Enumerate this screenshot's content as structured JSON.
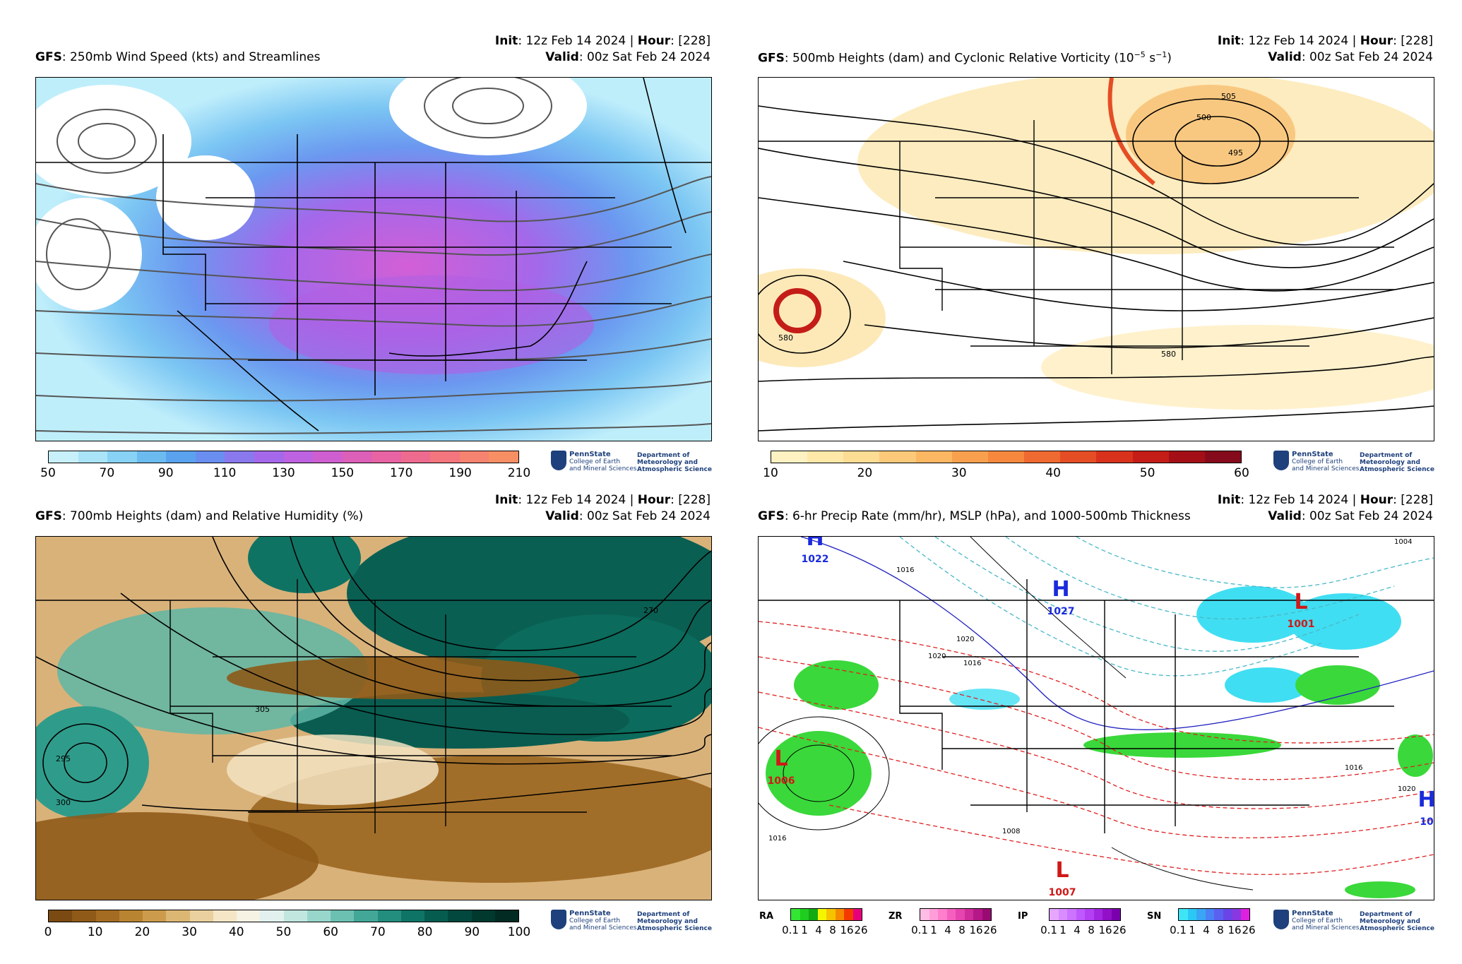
{
  "panels": [
    {
      "model": "GFS",
      "title": ": 250mb Wind Speed (kts) and Streamlines",
      "init_label": "Init",
      "init_value": ": 12z Feb 14 2024 | ",
      "hour_label": "Hour",
      "hour_value": ": [228]",
      "valid_label": "Valid",
      "valid_value": ": 00z Sat Feb 24 2024",
      "colorbar_ticks": [
        "50",
        "70",
        "90",
        "110",
        "130",
        "150",
        "170",
        "190",
        "210"
      ],
      "colorbar_colors": [
        "#c8f0fb",
        "#a9e4f8",
        "#87d2f5",
        "#6bbbf0",
        "#5aa2ee",
        "#6a8ef0",
        "#8a78ef",
        "#a668ea",
        "#bd62e0",
        "#cf5fd0",
        "#dc5fb8",
        "#e763a3",
        "#ee6b8f",
        "#f3757e",
        "#f68270",
        "#f88f64"
      ]
    },
    {
      "model": "GFS",
      "title": ": 500mb Heights (dam) and Cyclonic Relative Vorticity (10",
      "title_exp1": "−5",
      "title_mid": " s",
      "title_exp2": "−1",
      "title_end": ")",
      "init_label": "Init",
      "init_value": ": 12z Feb 14 2024 | ",
      "hour_label": "Hour",
      "hour_value": ": [228]",
      "valid_label": "Valid",
      "valid_value": ": 00z Sat Feb 24 2024",
      "colorbar_ticks": [
        "10",
        "20",
        "30",
        "40",
        "50",
        "60"
      ],
      "colorbar_colors": [
        "#fff2c2",
        "#ffe8a8",
        "#fddc94",
        "#fcc97a",
        "#fbb762",
        "#f9a04e",
        "#f6883e",
        "#ef6a30",
        "#e54d25",
        "#d8321c",
        "#c41d18",
        "#a40f17",
        "#850a1b"
      ],
      "contour_labels": [
        "505",
        "500",
        "495",
        "580",
        "580"
      ]
    },
    {
      "model": "GFS",
      "title": ": 700mb Heights (dam) and Relative Humidity (%)",
      "init_label": "Init",
      "init_value": ": 12z Feb 14 2024 | ",
      "hour_label": "Hour",
      "hour_value": ": [228]",
      "valid_label": "Valid",
      "valid_value": ": 00z Sat Feb 24 2024",
      "colorbar_ticks": [
        "0",
        "10",
        "20",
        "30",
        "40",
        "50",
        "60",
        "70",
        "80",
        "90",
        "100"
      ],
      "colorbar_colors": [
        "#7a4a12",
        "#8f5a18",
        "#a46c22",
        "#b98432",
        "#cc9c4c",
        "#dcb774",
        "#e9d09e",
        "#f4e6c6",
        "#f6f2e4",
        "#e2f1ee",
        "#c1e6df",
        "#98d6cb",
        "#6cc0b2",
        "#43a797",
        "#238d7e",
        "#0e7466",
        "#075c50",
        "#03483e",
        "#02392f",
        "#012b23"
      ],
      "contour_labels": [
        "270",
        "305",
        "300",
        "295"
      ]
    },
    {
      "model": "GFS",
      "title": ": 6-hr Precip Rate (mm/hr), MSLP (hPa), and 1000-500mb Thickness",
      "init_label": "Init",
      "init_value": ": 12z Feb 14 2024 | ",
      "hour_label": "Hour",
      "hour_value": ": [228]",
      "valid_label": "Valid",
      "valid_value": ": 00z Sat Feb 24 2024",
      "precip_types": [
        {
          "label": "RA",
          "colors": [
            "#33e633",
            "#1fcc1f",
            "#12aa12",
            "#f5f500",
            "#f5c300",
            "#f58a00",
            "#f53a00",
            "#e6007a"
          ]
        },
        {
          "label": "ZR",
          "colors": [
            "#ffbde6",
            "#ff9ed9",
            "#ff7fcc",
            "#f560bf",
            "#e645b0",
            "#d02c9c",
            "#b51888",
            "#990a73"
          ]
        },
        {
          "label": "IP",
          "colors": [
            "#e6a6ff",
            "#d98cff",
            "#cc73ff",
            "#bf59ff",
            "#b340f2",
            "#a326e0",
            "#9110c8",
            "#7a00ad"
          ]
        },
        {
          "label": "SN",
          "colors": [
            "#3ee6f5",
            "#2bc8f5",
            "#3aa5f5",
            "#4a82f5",
            "#5a60f0",
            "#6a44e6",
            "#8838e0",
            "#e020e0"
          ]
        }
      ],
      "precip_ticks": [
        "0.1",
        "1",
        "4",
        "8",
        "16",
        "26"
      ],
      "pressure_centers": [
        {
          "letter": "H",
          "value": "1022"
        },
        {
          "letter": "H",
          "value": "1027"
        },
        {
          "letter": "L",
          "value": "1001"
        },
        {
          "letter": "L",
          "value": "1006"
        },
        {
          "letter": "L",
          "value": "1007"
        },
        {
          "letter": "H",
          "value": "10"
        }
      ],
      "contour_labels": [
        "1004",
        "1016",
        "1020",
        "1016",
        "1020",
        "1016",
        "1016",
        "1020",
        "1008"
      ]
    }
  ],
  "logo": {
    "name": "PennState",
    "line2": "College of Earth",
    "line3": "and Mineral Sciences",
    "dept1": "Department of",
    "dept2": "Meteorology and",
    "dept3": "Atmospheric Science"
  }
}
